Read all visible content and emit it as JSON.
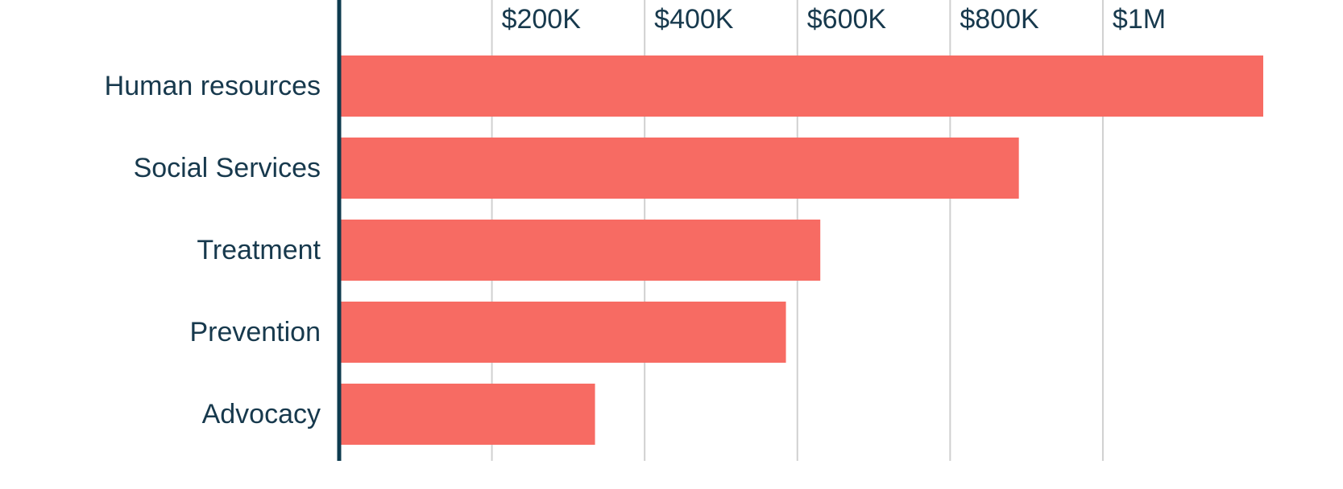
{
  "chart_data": {
    "type": "bar",
    "orientation": "horizontal",
    "categories": [
      "Human resources",
      "Social Services",
      "Treatment",
      "Prevention",
      "Advocacy"
    ],
    "values": [
      1210000,
      890000,
      630000,
      585000,
      335000
    ],
    "color": "#f76b63",
    "xlim": [
      0,
      1210000
    ],
    "xticks": [
      {
        "value": 200000,
        "label": "$200K"
      },
      {
        "value": 400000,
        "label": "$400K"
      },
      {
        "value": 600000,
        "label": "$600K"
      },
      {
        "value": 800000,
        "label": "$800K"
      },
      {
        "value": 1000000,
        "label": "$1M"
      }
    ],
    "grid": true
  }
}
